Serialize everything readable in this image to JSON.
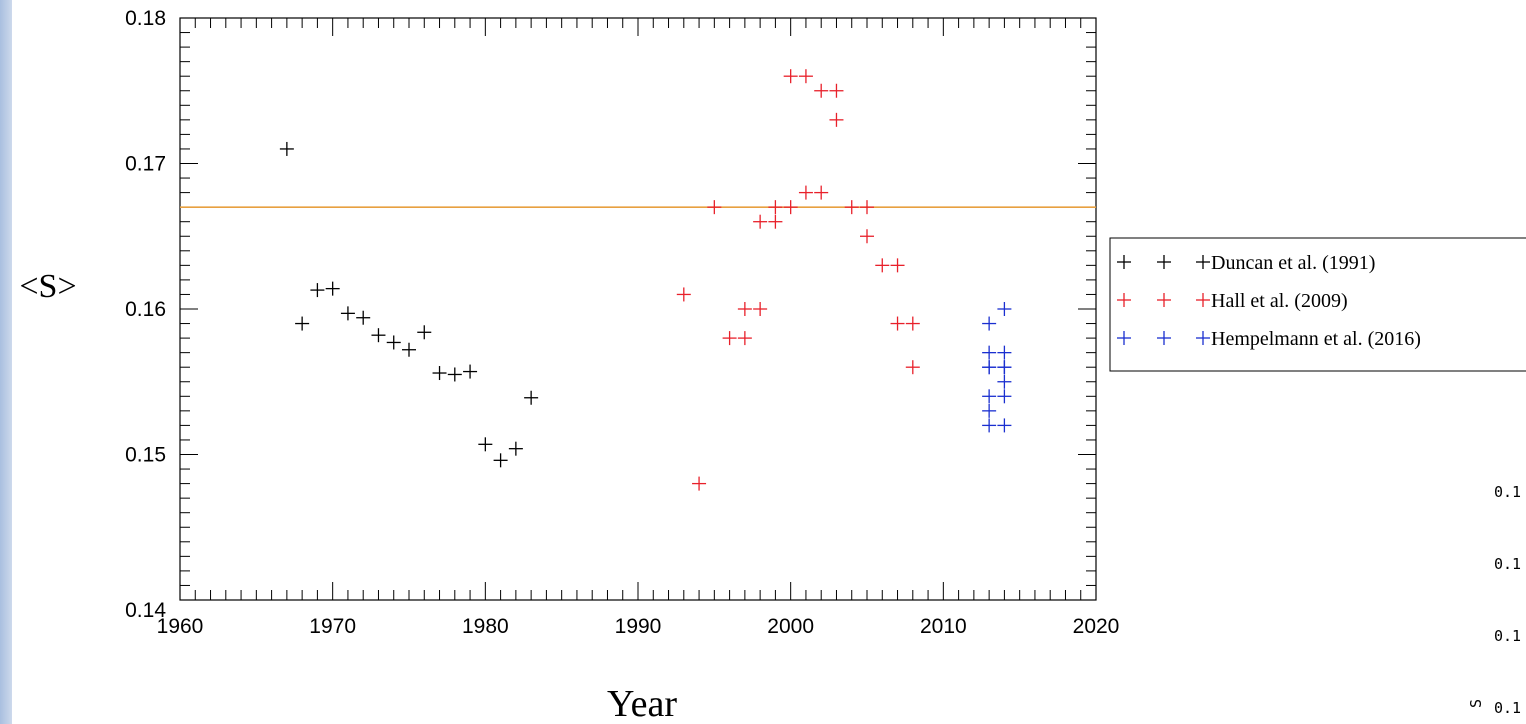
{
  "chart_data": {
    "type": "scatter",
    "xlabel": "Year",
    "ylabel": "<S>",
    "xlim": [
      1960,
      2020
    ],
    "ylim": [
      0.14,
      0.18
    ],
    "x_ticks": [
      "1960",
      "1970",
      "1980",
      "1990",
      "2000",
      "2010",
      "2020"
    ],
    "y_ticks": [
      "0.14",
      "0.15",
      "0.16",
      "0.17",
      "0.18"
    ],
    "grid": false,
    "legend_position": "right",
    "reference_line": {
      "y": 0.167,
      "color": "#e8a040"
    },
    "series": [
      {
        "name": "Duncan et al. (1991)",
        "color": "#000000",
        "x": [
          1967,
          1968,
          1969,
          1970,
          1971,
          1972,
          1973,
          1974,
          1975,
          1976,
          1977,
          1978,
          1979,
          1980,
          1981,
          1982,
          1983
        ],
        "y": [
          0.171,
          0.159,
          0.1613,
          0.1614,
          0.1597,
          0.1594,
          0.1582,
          0.1577,
          0.1572,
          0.1584,
          0.1556,
          0.1555,
          0.1557,
          0.1507,
          0.1496,
          0.1504,
          0.1539
        ]
      },
      {
        "name": "Hall et al. (2009)",
        "color": "#e8202a",
        "x": [
          1993,
          1994,
          1995,
          1996,
          1997,
          1997,
          1998,
          1998,
          1999,
          1999,
          2000,
          2000,
          2001,
          2001,
          2002,
          2002,
          2003,
          2003,
          2004,
          2005,
          2005,
          2006,
          2007,
          2007,
          2008,
          2008
        ],
        "y": [
          0.161,
          0.148,
          0.167,
          0.158,
          0.158,
          0.16,
          0.16,
          0.166,
          0.166,
          0.167,
          0.167,
          0.176,
          0.176,
          0.168,
          0.168,
          0.175,
          0.175,
          0.173,
          0.167,
          0.167,
          0.165,
          0.163,
          0.163,
          0.159,
          0.159,
          0.156
        ]
      },
      {
        "name": "Hempelmann et al. (2016)",
        "color": "#1a2fd0",
        "x": [
          2013,
          2013,
          2013,
          2013,
          2013,
          2013,
          2013,
          2014,
          2014,
          2014,
          2014,
          2014,
          2014,
          2014
        ],
        "y": [
          0.159,
          0.157,
          0.156,
          0.154,
          0.153,
          0.152,
          0.156,
          0.16,
          0.157,
          0.156,
          0.155,
          0.154,
          0.152,
          0.156
        ]
      }
    ]
  },
  "side_partial": {
    "labels": [
      "0.1",
      "0.1",
      "0.1",
      "0.1"
    ],
    "axis_fragment": "S"
  }
}
